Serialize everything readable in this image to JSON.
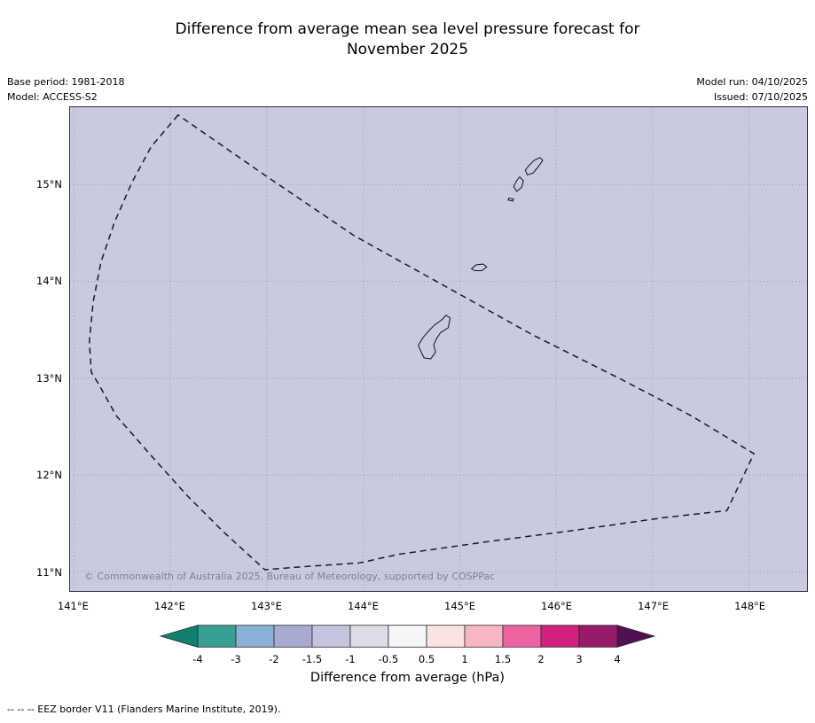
{
  "title": {
    "line1": "Difference from average mean sea level pressure forecast for",
    "line2": "November 2025"
  },
  "metadata": {
    "base_period": "Base period: 1981-2018",
    "model": "Model: ACCESS-S2",
    "model_run": "Model run: 04/10/2025",
    "issued": "Issued: 07/10/2025"
  },
  "map": {
    "background_color": "#c9c9e0",
    "grid_color": "#8a8aac",
    "copyright": "© Commonwealth of Australia 2025, Bureau of Meteorology, supported by COSPPac",
    "extent": {
      "lon_min": 140.96,
      "lon_max": 148.6,
      "lat_min": 10.8,
      "lat_max": 15.8
    },
    "x_ticks": [
      {
        "value": 141,
        "label": "141°E"
      },
      {
        "value": 142,
        "label": "142°E"
      },
      {
        "value": 143,
        "label": "143°E"
      },
      {
        "value": 144,
        "label": "144°E"
      },
      {
        "value": 145,
        "label": "145°E"
      },
      {
        "value": 146,
        "label": "146°E"
      },
      {
        "value": 147,
        "label": "147°E"
      },
      {
        "value": 148,
        "label": "148°E"
      }
    ],
    "y_ticks": [
      {
        "value": 15,
        "label": "15°N"
      },
      {
        "value": 14,
        "label": "14°N"
      },
      {
        "value": 13,
        "label": "13°N"
      },
      {
        "value": 12,
        "label": "12°N"
      },
      {
        "value": 11,
        "label": "11°N"
      }
    ],
    "eez_border": [
      [
        142.08,
        15.72
      ],
      [
        141.8,
        15.39
      ],
      [
        141.6,
        15.02
      ],
      [
        141.42,
        14.61
      ],
      [
        141.28,
        14.2
      ],
      [
        141.2,
        13.79
      ],
      [
        141.16,
        13.38
      ],
      [
        141.18,
        13.06
      ],
      [
        141.25,
        12.95
      ],
      [
        141.44,
        12.61
      ],
      [
        141.8,
        12.2
      ],
      [
        142.17,
        11.79
      ],
      [
        142.54,
        11.42
      ],
      [
        142.98,
        11.02
      ],
      [
        143.36,
        11.05
      ],
      [
        143.96,
        11.09
      ],
      [
        144.37,
        11.18
      ],
      [
        145.29,
        11.31
      ],
      [
        146.21,
        11.43
      ],
      [
        147.13,
        11.56
      ],
      [
        147.77,
        11.63
      ],
      [
        148.05,
        12.22
      ],
      [
        147.4,
        12.61
      ],
      [
        146.67,
        12.99
      ],
      [
        145.75,
        13.45
      ],
      [
        144.83,
        13.96
      ],
      [
        143.91,
        14.47
      ],
      [
        142.99,
        15.09
      ]
    ],
    "islands": [
      {
        "name": "Saipan",
        "points": [
          [
            145.7,
            15.1
          ],
          [
            145.68,
            15.15
          ],
          [
            145.72,
            15.2
          ],
          [
            145.77,
            15.25
          ],
          [
            145.83,
            15.28
          ],
          [
            145.86,
            15.25
          ],
          [
            145.81,
            15.18
          ],
          [
            145.76,
            15.12
          ]
        ]
      },
      {
        "name": "Tinian",
        "points": [
          [
            145.62,
            15.08
          ],
          [
            145.66,
            15.04
          ],
          [
            145.64,
            14.97
          ],
          [
            145.59,
            14.93
          ],
          [
            145.56,
            14.98
          ],
          [
            145.59,
            15.04
          ]
        ]
      },
      {
        "name": "Aguijan",
        "points": [
          [
            145.51,
            14.86
          ],
          [
            145.56,
            14.85
          ],
          [
            145.55,
            14.83
          ],
          [
            145.5,
            14.84
          ]
        ]
      },
      {
        "name": "Rota",
        "points": [
          [
            145.12,
            14.13
          ],
          [
            145.17,
            14.17
          ],
          [
            145.24,
            14.18
          ],
          [
            145.28,
            14.15
          ],
          [
            145.23,
            14.11
          ],
          [
            145.16,
            14.11
          ]
        ]
      },
      {
        "name": "Guam",
        "points": [
          [
            144.9,
            13.62
          ],
          [
            144.88,
            13.52
          ],
          [
            144.8,
            13.47
          ],
          [
            144.76,
            13.41
          ],
          [
            144.73,
            13.34
          ],
          [
            144.75,
            13.27
          ],
          [
            144.7,
            13.2
          ],
          [
            144.63,
            13.21
          ],
          [
            144.6,
            13.27
          ],
          [
            144.57,
            13.34
          ],
          [
            144.62,
            13.42
          ],
          [
            144.68,
            13.49
          ],
          [
            144.74,
            13.55
          ],
          [
            144.81,
            13.6
          ],
          [
            144.86,
            13.65
          ]
        ]
      }
    ]
  },
  "colorbar": {
    "label": "Difference from average (hPa)",
    "ticks": [
      "-4",
      "-3",
      "-2",
      "-1.5",
      "-1",
      "-0.5",
      "0.5",
      "1",
      "1.5",
      "2",
      "3",
      "4"
    ],
    "colors": [
      "#11806f",
      "#38a093",
      "#8ab1d6",
      "#a7abd0",
      "#c3c4de",
      "#dcdce9",
      "#f7f6f6",
      "#fbe3e3",
      "#f8b6c2",
      "#ec639f",
      "#d1207d",
      "#971b69",
      "#4e1156"
    ]
  },
  "footer": {
    "eez_note": "-- -- -- EEZ border V11 (Flanders Marine Institute, 2019)."
  },
  "chart_data": {
    "type": "heatmap",
    "variant": "geographic filled anomaly forecast map with discrete colorbar",
    "title": "Difference from average mean sea level pressure forecast for November 2025",
    "model": "ACCESS-S2",
    "base_period": "1981-2018",
    "model_run_date": "04/10/2025",
    "issued_date": "07/10/2025",
    "region": "Guam / Mariana Islands EEZ",
    "x_axis": {
      "tick_labels": [
        "141°E",
        "142°E",
        "143°E",
        "144°E",
        "145°E",
        "146°E",
        "147°E",
        "148°E"
      ],
      "range_deg_east": [
        140.96,
        148.6
      ]
    },
    "y_axis": {
      "tick_labels": [
        "11°N",
        "12°N",
        "13°N",
        "14°N",
        "15°N"
      ],
      "range_deg_north": [
        10.8,
        15.8
      ]
    },
    "value_field": "mean sea level pressure difference from average",
    "units": "hPa",
    "mapped_value_bin_hpa": [
      -1.5,
      -1.0
    ],
    "grid": true,
    "colorbar": {
      "label": "Difference from average (hPa)",
      "boundaries": [
        -4,
        -3,
        -2,
        -1.5,
        -1,
        -0.5,
        0.5,
        1,
        1.5,
        2,
        3,
        4
      ],
      "extend": "both",
      "colors": [
        "#11806f",
        "#38a093",
        "#8ab1d6",
        "#a7abd0",
        "#c3c4de",
        "#dcdce9",
        "#f7f6f6",
        "#fbe3e3",
        "#f8b6c2",
        "#ec639f",
        "#d1207d",
        "#971b69",
        "#4e1156"
      ]
    },
    "legend_note": "EEZ border V11 (Flanders Marine Institute, 2019)."
  }
}
